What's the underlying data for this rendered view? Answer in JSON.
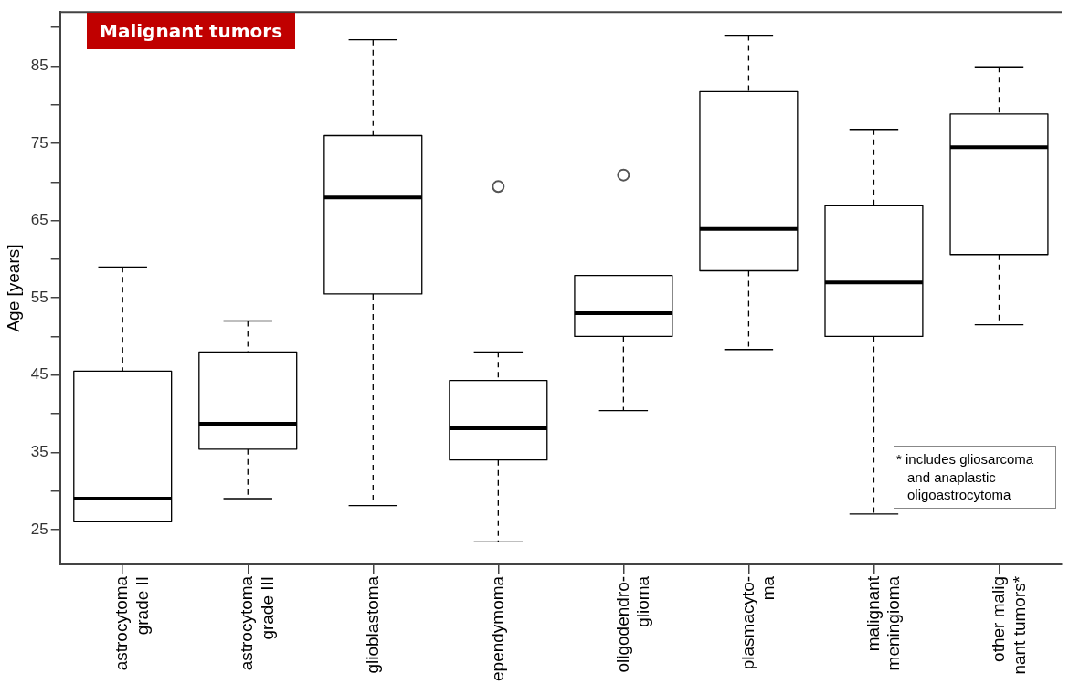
{
  "chart_data": {
    "type": "box",
    "title": "Malignant tumors",
    "ylabel": "Age [years]",
    "categories": [
      "astrocytoma\ngrade II",
      "astrocytoma\ngrade III",
      "glioblastoma",
      "ependymoma",
      "oligodendro-\nglioma",
      "plasmacyto-\nma",
      "malignant\nmeningioma",
      "other malig\nnant tumors*"
    ],
    "boxes": [
      {
        "low": 26,
        "q1": 26,
        "median": 29,
        "q3": 45.5,
        "high": 59
      },
      {
        "low": 29,
        "q1": 35.4,
        "median": 38.7,
        "q3": 48,
        "high": 52
      },
      {
        "low": 28.1,
        "q1": 55.5,
        "median": 68,
        "q3": 76,
        "high": 88.4
      },
      {
        "low": 23.4,
        "q1": 34,
        "median": 38.1,
        "q3": 44.3,
        "high": 48,
        "outliers": [
          69.4
        ]
      },
      {
        "low": 40.4,
        "q1": 50,
        "median": 53,
        "q3": 57.9,
        "high": 57.9,
        "outliers": [
          70.9
        ]
      },
      {
        "low": 48.3,
        "q1": 58.5,
        "median": 63.9,
        "q3": 81.7,
        "high": 89
      },
      {
        "low": 27,
        "q1": 50,
        "median": 57,
        "q3": 66.9,
        "high": 76.8
      },
      {
        "low": 51.5,
        "q1": 60.6,
        "median": 74.5,
        "q3": 78.8,
        "high": 84.9
      }
    ],
    "ylim": [
      20.5,
      92
    ],
    "yticks": [
      25,
      {
        "value": 30,
        "label": null
      },
      35,
      {
        "value": 40,
        "label": null
      },
      45,
      {
        "value": 50,
        "label": null
      },
      55,
      {
        "value": 60,
        "label": null
      },
      65,
      {
        "value": 70,
        "label": null
      },
      75,
      {
        "value": 80,
        "label": null
      },
      85,
      {
        "value": 90,
        "label": null
      }
    ],
    "grid": false,
    "legend": false,
    "marker": "circle",
    "annotations": [
      "* includes gliosarcoma and anaplastic oligoastrocytoma"
    ]
  }
}
